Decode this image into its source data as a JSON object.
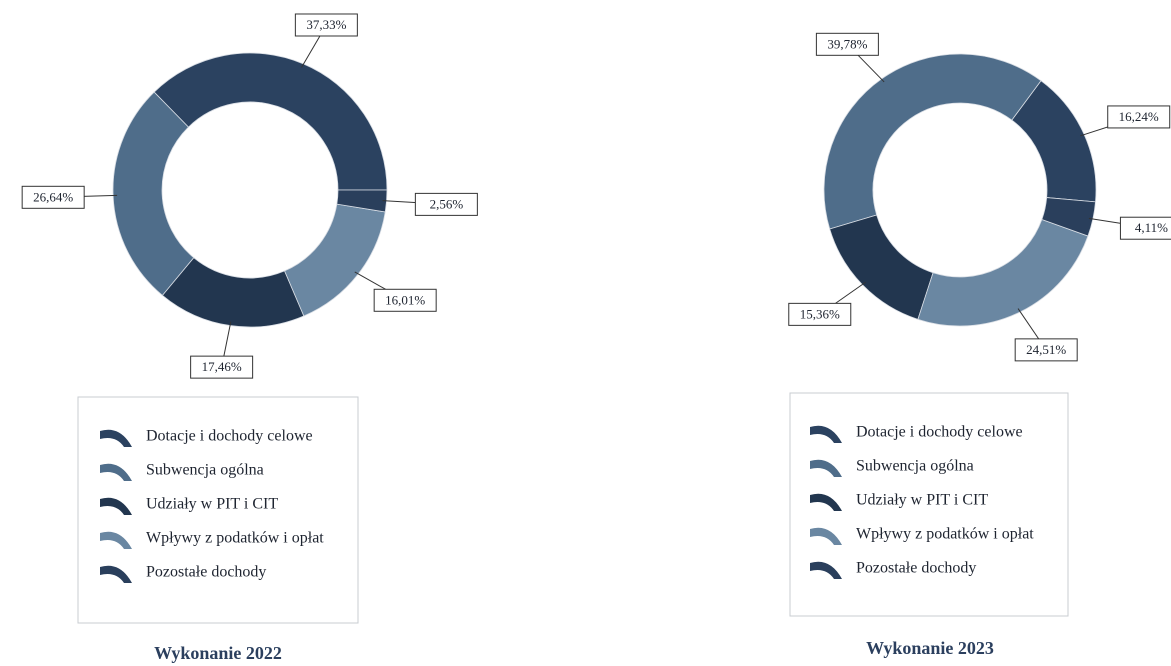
{
  "chart_data": [
    {
      "type": "pie",
      "title": "Wykonanie 2022",
      "categories": [
        "Dotacje i dochody celowe",
        "Subwencja ogólna",
        "Udziały w PIT i CIT",
        "Wpływy z podatków i opłat",
        "Pozostałe dochody"
      ],
      "values": [
        37.33,
        26.64,
        17.46,
        16.01,
        2.56
      ],
      "value_labels": [
        "37,33%",
        "26,64%",
        "17,46%",
        "16,01%",
        "2,56%"
      ],
      "colors": [
        "#2b4260",
        "#4f6d8a",
        "#22364f",
        "#6a87a2",
        "#2a3f5c"
      ]
    },
    {
      "type": "pie",
      "title": "Wykonanie 2023",
      "categories": [
        "Dotacje i dochody celowe",
        "Subwencja ogólna",
        "Udziały w PIT i CIT",
        "Wpływy z podatków i opłat",
        "Pozostałe dochody"
      ],
      "values": [
        16.24,
        39.78,
        15.36,
        24.51,
        4.11
      ],
      "value_labels": [
        "16,24%",
        "39,78%",
        "15,36%",
        "24,51%",
        "4,11%"
      ],
      "colors": [
        "#2b4260",
        "#4f6d8a",
        "#22364f",
        "#6a87a2",
        "#2a3f5c"
      ]
    }
  ]
}
